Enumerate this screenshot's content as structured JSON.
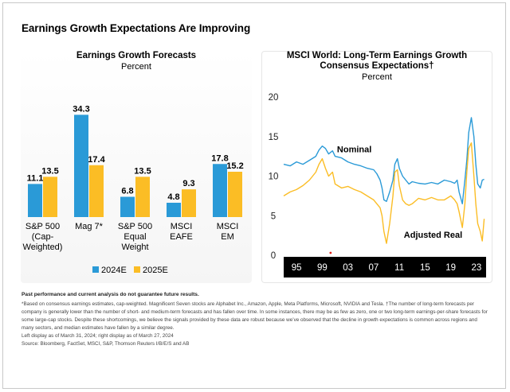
{
  "title": "Earnings Growth Expectations Are Improving",
  "colors": {
    "blue": "#2a9ad7",
    "yellow": "#fbbd25",
    "black": "#000000",
    "red": "#e2231a"
  },
  "chart_data": [
    {
      "type": "bar",
      "title": "Earnings Growth Forecasts",
      "subtitle": "Percent",
      "categories": [
        [
          "S&P 500",
          "(Cap-",
          "Weighted)"
        ],
        [
          "Mag 7*"
        ],
        [
          "S&P 500",
          "Equal",
          "Weight"
        ],
        [
          "MSCI",
          "EAFE"
        ],
        [
          "MSCI",
          "EM"
        ]
      ],
      "series": [
        {
          "name": "2024E",
          "color": "#2a9ad7",
          "values": [
            11.1,
            34.3,
            6.8,
            4.8,
            17.8
          ]
        },
        {
          "name": "2025E",
          "color": "#fbbd25",
          "values": [
            13.5,
            17.4,
            13.5,
            9.3,
            15.2
          ]
        }
      ],
      "value_labels": [
        [
          "11.1",
          "34.3",
          "6.8",
          "4.8",
          "17.8"
        ],
        [
          "13.5",
          "17.4",
          "13.5",
          "9.3",
          "15.2"
        ]
      ],
      "legend": [
        "2024E",
        "2025E"
      ]
    },
    {
      "type": "line",
      "title": "MSCI World: Long-Term Earnings Growth",
      "title_line2": "Consensus Expectations†",
      "subtitle": "Percent",
      "ylim": [
        0,
        20
      ],
      "yticks": [
        "0",
        "5",
        "10",
        "15",
        "20"
      ],
      "xlim": [
        1993,
        2024.5
      ],
      "xticks": [
        "95",
        "99",
        "03",
        "07",
        "11",
        "15",
        "19",
        "23"
      ],
      "annotations": [
        "Nominal",
        "Adjusted Real"
      ],
      "series": [
        {
          "name": "Nominal",
          "color": "#2a9ad7",
          "x": [
            1993.0,
            1994.0,
            1995.0,
            1996.0,
            1997.0,
            1998.0,
            1998.5,
            1999.0,
            1999.5,
            2000.0,
            2000.6,
            2001.0,
            2002.0,
            2003.0,
            2004.0,
            2005.0,
            2006.0,
            2007.0,
            2007.5,
            2008.0,
            2008.3,
            2008.6,
            2009.0,
            2009.5,
            2010.0,
            2010.3,
            2010.7,
            2011.0,
            2011.5,
            2012.0,
            2012.5,
            2013.0,
            2014.0,
            2015.0,
            2016.0,
            2017.0,
            2018.0,
            2019.0,
            2019.6,
            2020.0,
            2020.3,
            2020.8,
            2021.2,
            2021.5,
            2021.8,
            2022.2,
            2022.6,
            2022.9,
            2023.2,
            2023.6,
            2023.9,
            2024.2
          ],
          "y": [
            11.5,
            11.3,
            11.8,
            11.5,
            12.0,
            12.5,
            13.3,
            13.8,
            13.5,
            12.8,
            13.2,
            12.5,
            12.3,
            11.8,
            11.5,
            11.3,
            11.0,
            10.8,
            10.3,
            9.5,
            8.5,
            7.0,
            6.8,
            8.0,
            9.5,
            11.5,
            12.2,
            11.0,
            10.0,
            9.5,
            9.0,
            9.3,
            9.1,
            9.0,
            9.2,
            9.0,
            9.5,
            9.3,
            9.1,
            9.5,
            8.0,
            6.5,
            9.5,
            12.0,
            15.5,
            17.4,
            15.0,
            11.5,
            9.0,
            8.5,
            9.5,
            9.6
          ]
        },
        {
          "name": "Adjusted Real",
          "color": "#fbbd25",
          "x": [
            1993.0,
            1994.0,
            1995.0,
            1996.0,
            1997.0,
            1998.0,
            1998.5,
            1999.0,
            1999.5,
            2000.0,
            2000.6,
            2001.0,
            2002.0,
            2003.0,
            2004.0,
            2005.0,
            2006.0,
            2007.0,
            2007.5,
            2008.0,
            2008.3,
            2008.6,
            2009.0,
            2009.5,
            2010.0,
            2010.3,
            2010.7,
            2011.0,
            2011.5,
            2012.0,
            2012.5,
            2013.0,
            2014.0,
            2015.0,
            2016.0,
            2017.0,
            2018.0,
            2019.0,
            2019.6,
            2020.0,
            2020.3,
            2020.8,
            2021.2,
            2021.5,
            2021.8,
            2022.2,
            2022.6,
            2022.9,
            2023.2,
            2023.6,
            2023.9,
            2024.2
          ],
          "y": [
            7.5,
            8.0,
            8.3,
            8.8,
            9.5,
            10.5,
            11.5,
            12.2,
            11.0,
            10.0,
            10.5,
            9.0,
            8.5,
            8.7,
            8.3,
            8.0,
            7.5,
            7.0,
            6.5,
            6.0,
            5.0,
            3.0,
            1.5,
            4.0,
            7.5,
            10.5,
            10.8,
            8.8,
            7.0,
            6.5,
            6.3,
            6.5,
            7.2,
            7.0,
            7.3,
            7.0,
            7.0,
            7.5,
            7.0,
            6.5,
            5.5,
            3.5,
            6.5,
            10.5,
            13.5,
            14.2,
            10.0,
            6.5,
            4.0,
            3.0,
            1.8,
            4.6
          ]
        }
      ]
    }
  ],
  "notes": {
    "disclaimer": "Past performance and current analysis do not guarantee future results.",
    "footnote": "*Based on consensus earnings estimates, cap-weighted. Magnificent Seven stocks are Alphabet Inc., Amazon, Apple, Meta Platforms, Microsoft, NVIDIA and Tesla. †The number of long-term forecasts per company is generally lower than the number of short- and medium-term forecasts and has fallen over time. In some instances, there may be as few as zero, one or two long-term earnings-per-share forecasts for some large-cap stocks. Despite these shortcomings, we believe the signals provided by these data are robust because we’ve observed that the decline in growth expectations is common across regions and many sectors, and median estimates have fallen by a similar degree.",
    "dates": "Left display as of March 31, 2024; right display as of March 27, 2024",
    "source": "Source: Bloomberg, FactSet, MSCI, S&P, Thomson Reuters I/B/E/S and AB"
  }
}
